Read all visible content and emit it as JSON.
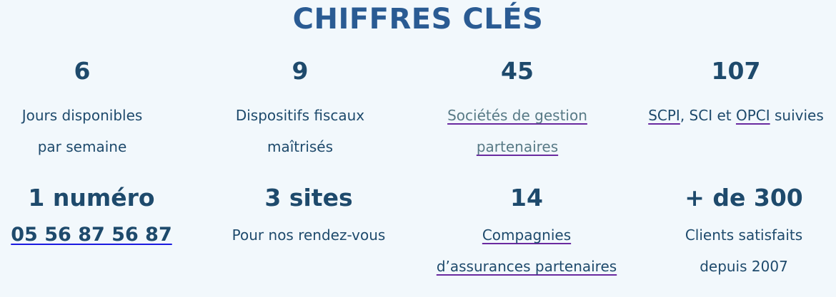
{
  "title": "CHIFFRES CLÉS",
  "stats": [
    {
      "number": "6",
      "line1": "Jours disponibles",
      "line2": "par semaine"
    },
    {
      "number": "9",
      "line1": "Dispositifs fiscaux",
      "line2": "maîtrisés"
    },
    {
      "number": "45",
      "line1": "Sociétés de gestion",
      "line2": "partenaires"
    },
    {
      "number": "107",
      "link1": "SCPI",
      "text1": ", SCI et ",
      "link2": "OPCI",
      "text2": " suivies"
    },
    {
      "number": "1 numéro",
      "phone": "05 56 87 56 87"
    },
    {
      "number": "3 sites",
      "line1": "Pour nos rendez-vous"
    },
    {
      "number": "14",
      "line1": "Compagnies",
      "line2": "d’assurances partenaires"
    },
    {
      "number": "+ de 300",
      "line1": "Clients satisfaits",
      "line2": "depuis 2007"
    }
  ]
}
